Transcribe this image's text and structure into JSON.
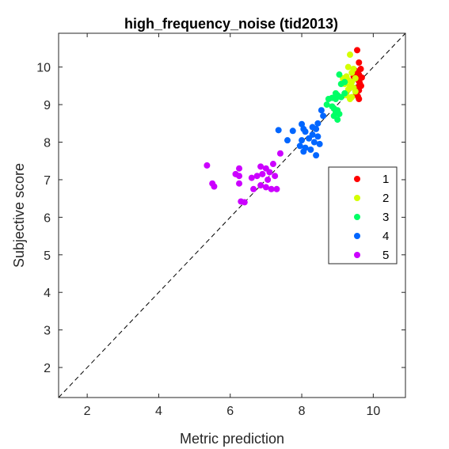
{
  "chart_data": {
    "type": "scatter",
    "title": "high_frequency_noise (tid2013)",
    "xlabel": "Metric prediction",
    "ylabel": "Subjective score",
    "xlim": [
      1.2,
      10.9
    ],
    "ylim": [
      1.2,
      10.9
    ],
    "xticks": [
      2,
      4,
      6,
      8,
      10
    ],
    "yticks": [
      2,
      3,
      4,
      5,
      6,
      7,
      8,
      9,
      10
    ],
    "grid": false,
    "legend_position": "right",
    "reference_line": "y = x (dashed)",
    "series": [
      {
        "name": "1",
        "color": "#ff0000",
        "points": [
          [
            9.55,
            10.45
          ],
          [
            9.6,
            10.12
          ],
          [
            9.65,
            9.95
          ],
          [
            9.55,
            9.88
          ],
          [
            9.6,
            9.8
          ],
          [
            9.68,
            9.72
          ],
          [
            9.58,
            9.65
          ],
          [
            9.62,
            9.58
          ],
          [
            9.66,
            9.5
          ],
          [
            9.55,
            9.45
          ],
          [
            9.6,
            9.38
          ],
          [
            9.52,
            9.3
          ],
          [
            9.57,
            9.22
          ],
          [
            9.6,
            9.15
          ],
          [
            9.5,
            9.9
          ],
          [
            9.45,
            9.75
          ]
        ]
      },
      {
        "name": "2",
        "color": "#d4ff00",
        "points": [
          [
            9.35,
            10.33
          ],
          [
            9.3,
            10.0
          ],
          [
            9.45,
            9.95
          ],
          [
            9.4,
            9.85
          ],
          [
            9.25,
            9.75
          ],
          [
            9.5,
            9.7
          ],
          [
            9.3,
            9.65
          ],
          [
            9.4,
            9.6
          ],
          [
            9.2,
            9.55
          ],
          [
            9.35,
            9.5
          ],
          [
            9.45,
            9.45
          ],
          [
            9.3,
            9.4
          ],
          [
            9.5,
            9.35
          ],
          [
            9.25,
            9.25
          ],
          [
            9.4,
            9.2
          ],
          [
            9.35,
            9.15
          ],
          [
            9.15,
            9.7
          ]
        ]
      },
      {
        "name": "3",
        "color": "#00ff66",
        "points": [
          [
            9.05,
            9.8
          ],
          [
            9.2,
            9.6
          ],
          [
            9.1,
            9.55
          ],
          [
            8.95,
            9.3
          ],
          [
            9.0,
            9.25
          ],
          [
            9.1,
            9.2
          ],
          [
            9.2,
            9.3
          ],
          [
            8.85,
            9.18
          ],
          [
            8.75,
            9.15
          ],
          [
            8.95,
            9.15
          ],
          [
            8.7,
            9.0
          ],
          [
            8.85,
            8.95
          ],
          [
            8.9,
            8.9
          ],
          [
            9.0,
            8.85
          ],
          [
            8.95,
            8.8
          ],
          [
            9.05,
            8.75
          ],
          [
            8.9,
            8.7
          ],
          [
            9.0,
            8.6
          ]
        ]
      },
      {
        "name": "4",
        "color": "#0066ff",
        "points": [
          [
            8.55,
            8.85
          ],
          [
            8.6,
            8.7
          ],
          [
            8.45,
            8.5
          ],
          [
            8.0,
            8.48
          ],
          [
            8.3,
            8.4
          ],
          [
            8.4,
            8.35
          ],
          [
            7.75,
            8.3
          ],
          [
            8.05,
            8.35
          ],
          [
            7.35,
            8.32
          ],
          [
            8.3,
            8.2
          ],
          [
            8.45,
            8.15
          ],
          [
            8.2,
            8.1
          ],
          [
            8.0,
            8.05
          ],
          [
            7.6,
            8.05
          ],
          [
            8.35,
            8.0
          ],
          [
            8.5,
            7.95
          ],
          [
            7.95,
            7.9
          ],
          [
            8.1,
            7.85
          ],
          [
            8.25,
            7.8
          ],
          [
            8.05,
            7.75
          ],
          [
            8.4,
            7.65
          ],
          [
            8.1,
            8.28
          ]
        ]
      },
      {
        "name": "5",
        "color": "#cc00ff",
        "points": [
          [
            5.35,
            7.38
          ],
          [
            6.25,
            7.3
          ],
          [
            6.85,
            7.35
          ],
          [
            7.0,
            7.3
          ],
          [
            7.2,
            7.42
          ],
          [
            7.4,
            7.7
          ],
          [
            6.15,
            7.15
          ],
          [
            6.25,
            7.1
          ],
          [
            6.6,
            7.05
          ],
          [
            6.75,
            7.1
          ],
          [
            6.9,
            7.15
          ],
          [
            7.1,
            7.2
          ],
          [
            7.25,
            7.1
          ],
          [
            7.05,
            7.0
          ],
          [
            6.25,
            6.9
          ],
          [
            5.5,
            6.9
          ],
          [
            5.55,
            6.82
          ],
          [
            6.85,
            6.85
          ],
          [
            7.0,
            6.8
          ],
          [
            7.3,
            6.75
          ],
          [
            6.65,
            6.75
          ],
          [
            7.15,
            6.75
          ],
          [
            6.3,
            6.42
          ],
          [
            6.4,
            6.4
          ]
        ]
      }
    ]
  }
}
